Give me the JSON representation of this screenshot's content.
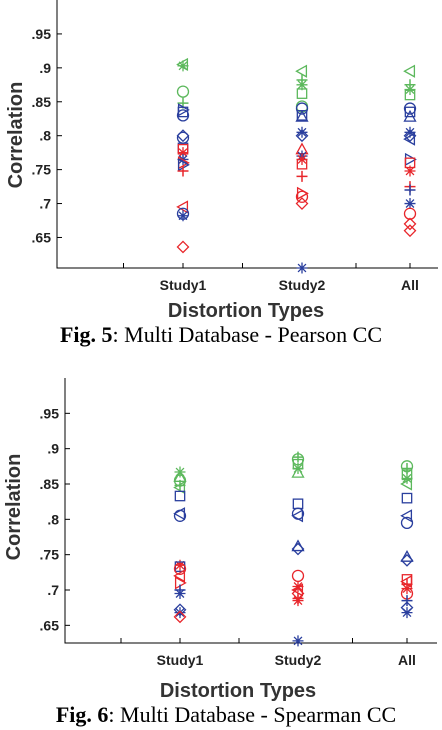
{
  "chart_data": [
    {
      "type": "scatter",
      "categories": [
        "Study1",
        "Study2",
        "All"
      ],
      "xlabel": "Distortion Types",
      "ylabel": "Correlation",
      "yticks": [
        0.65,
        0.7,
        0.75,
        0.8,
        0.85,
        0.9,
        0.95
      ],
      "ylim": [
        0.605,
        1.0
      ],
      "caption_label": "Fig. 5",
      "caption_text": ": Multi Database - Pearson CC",
      "colors": {
        "green": "#5cb85c",
        "blue": "#2a3f9e",
        "red": "#e8262b"
      },
      "points": [
        {
          "cat": 0,
          "y": 0.905,
          "color": "green",
          "marker": "tri-left"
        },
        {
          "cat": 0,
          "y": 0.903,
          "color": "green",
          "marker": "star"
        },
        {
          "cat": 0,
          "y": 0.865,
          "color": "green",
          "marker": "circle"
        },
        {
          "cat": 0,
          "y": 0.848,
          "color": "green",
          "marker": "plus"
        },
        {
          "cat": 0,
          "y": 0.838,
          "color": "blue",
          "marker": "tri-right"
        },
        {
          "cat": 0,
          "y": 0.835,
          "color": "blue",
          "marker": "square"
        },
        {
          "cat": 0,
          "y": 0.83,
          "color": "blue",
          "marker": "circle"
        },
        {
          "cat": 0,
          "y": 0.8,
          "color": "blue",
          "marker": "diamond"
        },
        {
          "cat": 0,
          "y": 0.797,
          "color": "blue",
          "marker": "circle"
        },
        {
          "cat": 0,
          "y": 0.782,
          "color": "blue",
          "marker": "square"
        },
        {
          "cat": 0,
          "y": 0.78,
          "color": "red",
          "marker": "square"
        },
        {
          "cat": 0,
          "y": 0.775,
          "color": "red",
          "marker": "star"
        },
        {
          "cat": 0,
          "y": 0.765,
          "color": "blue",
          "marker": "star"
        },
        {
          "cat": 0,
          "y": 0.76,
          "color": "red",
          "marker": "tri-right"
        },
        {
          "cat": 0,
          "y": 0.757,
          "color": "blue",
          "marker": "tri-right"
        },
        {
          "cat": 0,
          "y": 0.748,
          "color": "red",
          "marker": "plus"
        },
        {
          "cat": 0,
          "y": 0.695,
          "color": "red",
          "marker": "tri-left"
        },
        {
          "cat": 0,
          "y": 0.685,
          "color": "blue",
          "marker": "circle"
        },
        {
          "cat": 0,
          "y": 0.682,
          "color": "blue",
          "marker": "star"
        },
        {
          "cat": 0,
          "y": 0.636,
          "color": "red",
          "marker": "diamond"
        },
        {
          "cat": 1,
          "y": 0.895,
          "color": "green",
          "marker": "tri-left"
        },
        {
          "cat": 1,
          "y": 0.882,
          "color": "green",
          "marker": "plus"
        },
        {
          "cat": 1,
          "y": 0.875,
          "color": "green",
          "marker": "star"
        },
        {
          "cat": 1,
          "y": 0.862,
          "color": "green",
          "marker": "square"
        },
        {
          "cat": 1,
          "y": 0.843,
          "color": "green",
          "marker": "circle"
        },
        {
          "cat": 1,
          "y": 0.84,
          "color": "blue",
          "marker": "circle"
        },
        {
          "cat": 1,
          "y": 0.83,
          "color": "blue",
          "marker": "square"
        },
        {
          "cat": 1,
          "y": 0.828,
          "color": "blue",
          "marker": "tri-up"
        },
        {
          "cat": 1,
          "y": 0.805,
          "color": "blue",
          "marker": "star"
        },
        {
          "cat": 1,
          "y": 0.8,
          "color": "blue",
          "marker": "diamond"
        },
        {
          "cat": 1,
          "y": 0.78,
          "color": "red",
          "marker": "tri-up"
        },
        {
          "cat": 1,
          "y": 0.77,
          "color": "blue",
          "marker": "star"
        },
        {
          "cat": 1,
          "y": 0.765,
          "color": "red",
          "marker": "star"
        },
        {
          "cat": 1,
          "y": 0.758,
          "color": "red",
          "marker": "square"
        },
        {
          "cat": 1,
          "y": 0.74,
          "color": "red",
          "marker": "plus"
        },
        {
          "cat": 1,
          "y": 0.715,
          "color": "red",
          "marker": "tri-right"
        },
        {
          "cat": 1,
          "y": 0.71,
          "color": "red",
          "marker": "circle"
        },
        {
          "cat": 1,
          "y": 0.7,
          "color": "red",
          "marker": "diamond"
        },
        {
          "cat": 1,
          "y": 0.605,
          "color": "blue",
          "marker": "star"
        },
        {
          "cat": 2,
          "y": 0.895,
          "color": "green",
          "marker": "tri-left"
        },
        {
          "cat": 2,
          "y": 0.875,
          "color": "green",
          "marker": "plus"
        },
        {
          "cat": 2,
          "y": 0.868,
          "color": "green",
          "marker": "star"
        },
        {
          "cat": 2,
          "y": 0.86,
          "color": "green",
          "marker": "square"
        },
        {
          "cat": 2,
          "y": 0.84,
          "color": "blue",
          "marker": "circle"
        },
        {
          "cat": 2,
          "y": 0.835,
          "color": "blue",
          "marker": "square"
        },
        {
          "cat": 2,
          "y": 0.828,
          "color": "blue",
          "marker": "tri-up"
        },
        {
          "cat": 2,
          "y": 0.805,
          "color": "blue",
          "marker": "star"
        },
        {
          "cat": 2,
          "y": 0.8,
          "color": "blue",
          "marker": "diamond"
        },
        {
          "cat": 2,
          "y": 0.795,
          "color": "blue",
          "marker": "tri-left"
        },
        {
          "cat": 2,
          "y": 0.765,
          "color": "blue",
          "marker": "tri-right"
        },
        {
          "cat": 2,
          "y": 0.76,
          "color": "red",
          "marker": "square"
        },
        {
          "cat": 2,
          "y": 0.748,
          "color": "red",
          "marker": "star"
        },
        {
          "cat": 2,
          "y": 0.725,
          "color": "red",
          "marker": "plus"
        },
        {
          "cat": 2,
          "y": 0.72,
          "color": "blue",
          "marker": "plus"
        },
        {
          "cat": 2,
          "y": 0.7,
          "color": "blue",
          "marker": "star"
        },
        {
          "cat": 2,
          "y": 0.685,
          "color": "red",
          "marker": "circle"
        },
        {
          "cat": 2,
          "y": 0.67,
          "color": "red",
          "marker": "diamond"
        },
        {
          "cat": 2,
          "y": 0.66,
          "color": "red",
          "marker": "diamond"
        }
      ]
    },
    {
      "type": "scatter",
      "categories": [
        "Study1",
        "Study2",
        "All"
      ],
      "xlabel": "Distortion Types",
      "ylabel": "Correlation",
      "yticks": [
        0.65,
        0.7,
        0.75,
        0.8,
        0.85,
        0.9,
        0.95
      ],
      "ylim": [
        0.625,
        1.0
      ],
      "caption_label": "Fig. 6",
      "caption_text": ": Multi Database - Spearman CC",
      "colors": {
        "green": "#5cb85c",
        "blue": "#2a3f9e",
        "red": "#e8262b"
      },
      "points": [
        {
          "cat": 0,
          "y": 0.867,
          "color": "green",
          "marker": "star"
        },
        {
          "cat": 0,
          "y": 0.86,
          "color": "green",
          "marker": "tri-up"
        },
        {
          "cat": 0,
          "y": 0.855,
          "color": "green",
          "marker": "circle"
        },
        {
          "cat": 0,
          "y": 0.848,
          "color": "green",
          "marker": "plus"
        },
        {
          "cat": 0,
          "y": 0.845,
          "color": "green",
          "marker": "tri-left"
        },
        {
          "cat": 0,
          "y": 0.833,
          "color": "blue",
          "marker": "square"
        },
        {
          "cat": 0,
          "y": 0.808,
          "color": "blue",
          "marker": "tri-left"
        },
        {
          "cat": 0,
          "y": 0.805,
          "color": "blue",
          "marker": "circle"
        },
        {
          "cat": 0,
          "y": 0.735,
          "color": "red",
          "marker": "star"
        },
        {
          "cat": 0,
          "y": 0.733,
          "color": "blue",
          "marker": "square"
        },
        {
          "cat": 0,
          "y": 0.73,
          "color": "red",
          "marker": "circle"
        },
        {
          "cat": 0,
          "y": 0.72,
          "color": "red",
          "marker": "tri-left"
        },
        {
          "cat": 0,
          "y": 0.71,
          "color": "red",
          "marker": "tri-right"
        },
        {
          "cat": 0,
          "y": 0.7,
          "color": "blue",
          "marker": "plus"
        },
        {
          "cat": 0,
          "y": 0.695,
          "color": "blue",
          "marker": "star"
        },
        {
          "cat": 0,
          "y": 0.672,
          "color": "blue",
          "marker": "diamond"
        },
        {
          "cat": 0,
          "y": 0.668,
          "color": "blue",
          "marker": "star"
        },
        {
          "cat": 0,
          "y": 0.662,
          "color": "red",
          "marker": "diamond"
        },
        {
          "cat": 1,
          "y": 0.888,
          "color": "green",
          "marker": "plus"
        },
        {
          "cat": 1,
          "y": 0.885,
          "color": "green",
          "marker": "circle"
        },
        {
          "cat": 1,
          "y": 0.878,
          "color": "green",
          "marker": "square"
        },
        {
          "cat": 1,
          "y": 0.872,
          "color": "green",
          "marker": "star"
        },
        {
          "cat": 1,
          "y": 0.866,
          "color": "green",
          "marker": "tri-up"
        },
        {
          "cat": 1,
          "y": 0.822,
          "color": "blue",
          "marker": "square"
        },
        {
          "cat": 1,
          "y": 0.808,
          "color": "blue",
          "marker": "circle"
        },
        {
          "cat": 1,
          "y": 0.805,
          "color": "blue",
          "marker": "tri-left"
        },
        {
          "cat": 1,
          "y": 0.762,
          "color": "blue",
          "marker": "tri-up"
        },
        {
          "cat": 1,
          "y": 0.758,
          "color": "blue",
          "marker": "diamond"
        },
        {
          "cat": 1,
          "y": 0.72,
          "color": "red",
          "marker": "circle"
        },
        {
          "cat": 1,
          "y": 0.705,
          "color": "red",
          "marker": "star"
        },
        {
          "cat": 1,
          "y": 0.7,
          "color": "red",
          "marker": "tri-left"
        },
        {
          "cat": 1,
          "y": 0.695,
          "color": "red",
          "marker": "diamond"
        },
        {
          "cat": 1,
          "y": 0.688,
          "color": "red",
          "marker": "plus"
        },
        {
          "cat": 1,
          "y": 0.685,
          "color": "red",
          "marker": "star"
        },
        {
          "cat": 1,
          "y": 0.628,
          "color": "blue",
          "marker": "star"
        },
        {
          "cat": 2,
          "y": 0.875,
          "color": "green",
          "marker": "circle"
        },
        {
          "cat": 2,
          "y": 0.872,
          "color": "green",
          "marker": "plus"
        },
        {
          "cat": 2,
          "y": 0.863,
          "color": "green",
          "marker": "square"
        },
        {
          "cat": 2,
          "y": 0.858,
          "color": "green",
          "marker": "star"
        },
        {
          "cat": 2,
          "y": 0.85,
          "color": "green",
          "marker": "tri-left"
        },
        {
          "cat": 2,
          "y": 0.83,
          "color": "blue",
          "marker": "square"
        },
        {
          "cat": 2,
          "y": 0.805,
          "color": "blue",
          "marker": "tri-left"
        },
        {
          "cat": 2,
          "y": 0.795,
          "color": "blue",
          "marker": "circle"
        },
        {
          "cat": 2,
          "y": 0.747,
          "color": "blue",
          "marker": "tri-up"
        },
        {
          "cat": 2,
          "y": 0.742,
          "color": "blue",
          "marker": "diamond"
        },
        {
          "cat": 2,
          "y": 0.715,
          "color": "red",
          "marker": "square"
        },
        {
          "cat": 2,
          "y": 0.712,
          "color": "red",
          "marker": "tri-left"
        },
        {
          "cat": 2,
          "y": 0.708,
          "color": "red",
          "marker": "plus"
        },
        {
          "cat": 2,
          "y": 0.702,
          "color": "red",
          "marker": "star"
        },
        {
          "cat": 2,
          "y": 0.695,
          "color": "red",
          "marker": "circle"
        },
        {
          "cat": 2,
          "y": 0.685,
          "color": "blue",
          "marker": "plus"
        },
        {
          "cat": 2,
          "y": 0.675,
          "color": "blue",
          "marker": "diamond"
        },
        {
          "cat": 2,
          "y": 0.668,
          "color": "blue",
          "marker": "star"
        }
      ]
    }
  ]
}
